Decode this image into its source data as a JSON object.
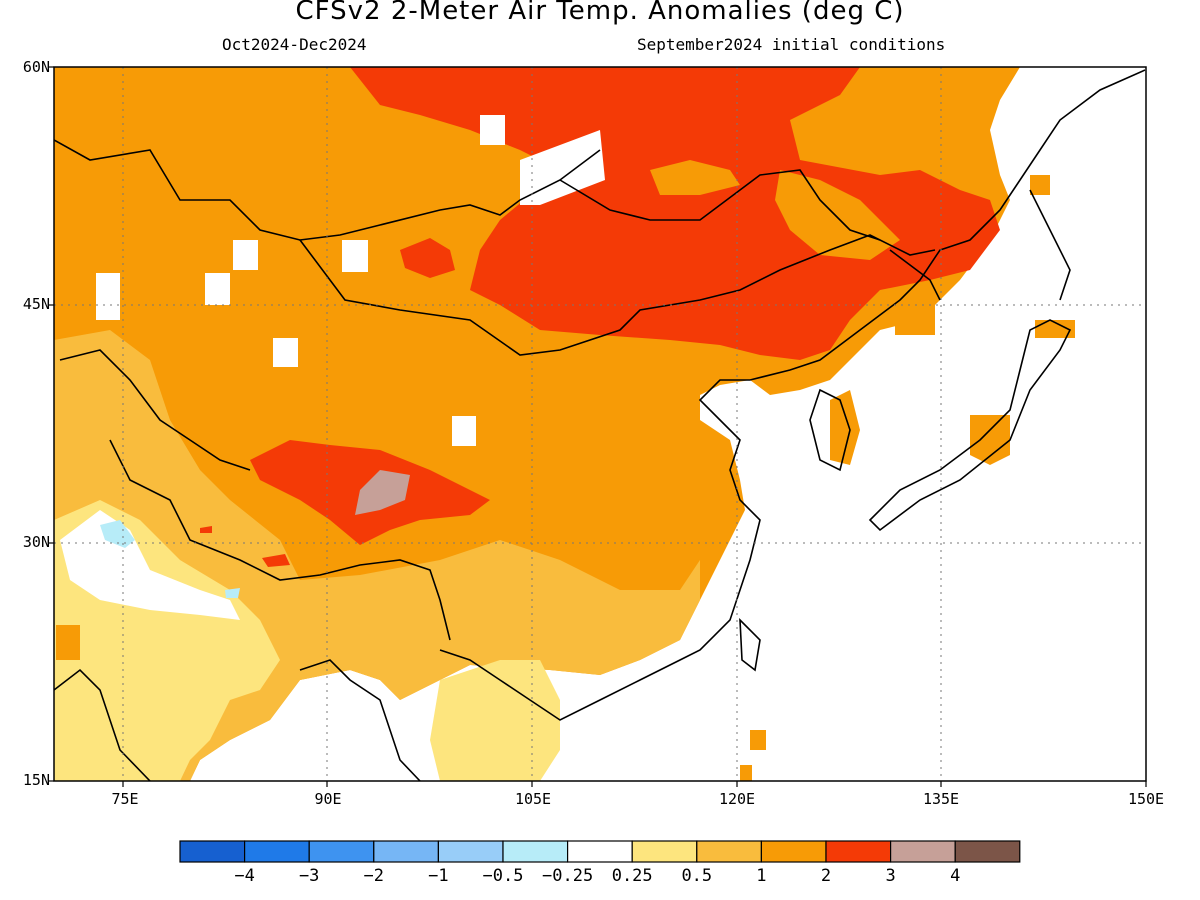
{
  "header": {
    "title": "CFSv2 2-Meter Air Temp. Anomalies (deg C)",
    "period": "Oct2024-Dec2024",
    "init": "September2024 initial conditions"
  },
  "axes": {
    "lat_labels": [
      "60N",
      "45N",
      "30N",
      "15N"
    ],
    "lon_labels": [
      "75E",
      "90E",
      "105E",
      "120E",
      "135E",
      "150E"
    ]
  },
  "colorbar": {
    "labels": [
      "-4",
      "-3",
      "-2",
      "-1",
      "-0.5",
      "-0.25",
      "0.25",
      "0.5",
      "1",
      "2",
      "3",
      "4"
    ],
    "colors": [
      "#1660d0",
      "#1f7ae8",
      "#3e93f0",
      "#76b6f5",
      "#98cdf8",
      "#b7ecf8",
      "#ffffff",
      "#fde57e",
      "#f9bc3d",
      "#f79b06",
      "#f43a06",
      "#c6a098",
      "#7c5548"
    ]
  },
  "map": {
    "extent": {
      "lon": [
        70,
        150
      ],
      "lat": [
        15,
        60
      ]
    },
    "colors": {
      "cat2": "#f79b06",
      "cat1": "#f9bc3d",
      "cat05": "#fde57e",
      "cat3": "#f43a06",
      "cat4": "#c6a098",
      "cat025": "#b7ecf8"
    }
  }
}
